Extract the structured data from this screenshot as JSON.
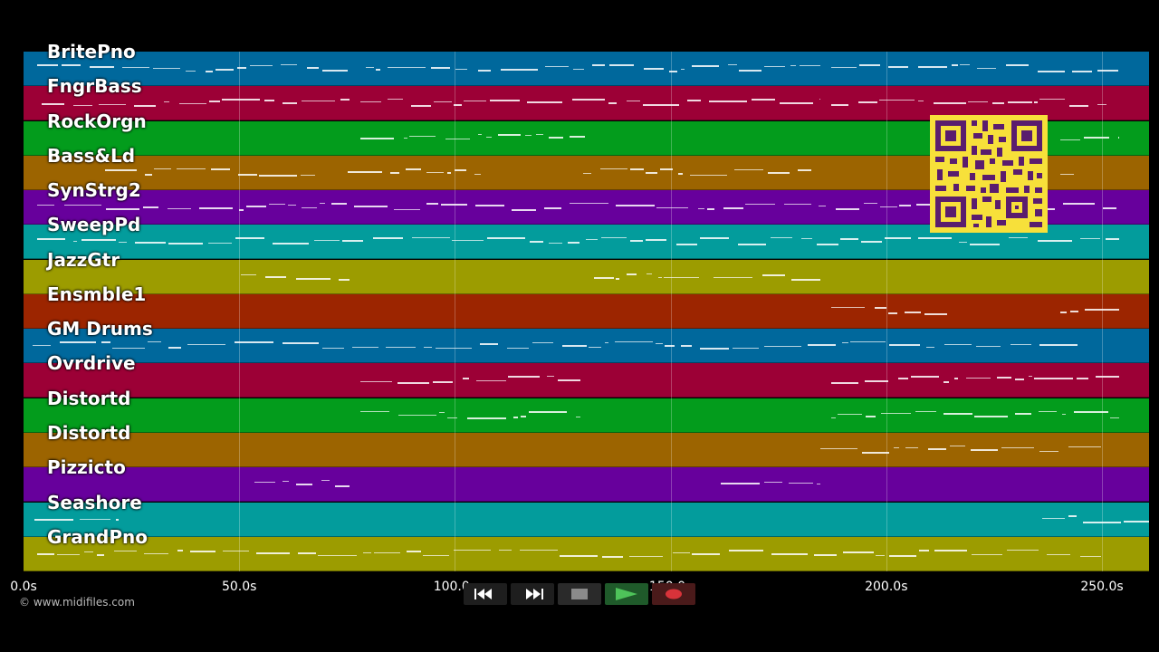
{
  "tracks": [
    {
      "name": "BritePno",
      "color": "#00689c"
    },
    {
      "name": "FngrBass",
      "color": "#9c0036"
    },
    {
      "name": "RockOrgn",
      "color": "#039c1c"
    },
    {
      "name": "Bass&Ld",
      "color": "#9c6400"
    },
    {
      "name": "SynStrg2",
      "color": "#67009c"
    },
    {
      "name": "SweepPd",
      "color": "#039c9c"
    },
    {
      "name": "JazzGtr",
      "color": "#9c9c00"
    },
    {
      "name": "Ensmble1",
      "color": "#9c2500"
    },
    {
      "name": "GM Drums",
      "color": "#00689c"
    },
    {
      "name": "Ovrdrive",
      "color": "#9c0036"
    },
    {
      "name": "Distortd",
      "color": "#039c1c"
    },
    {
      "name": "Distortd",
      "color": "#9c6400"
    },
    {
      "name": "Pizzicto",
      "color": "#67009c"
    },
    {
      "name": "Seashore",
      "color": "#039c9c"
    },
    {
      "name": "GrandPno",
      "color": "#9c9c00"
    }
  ],
  "timeline": {
    "ticks": [
      {
        "seconds": 0,
        "label": "0.0s"
      },
      {
        "seconds": 50,
        "label": "50.0s"
      },
      {
        "seconds": 100,
        "label": "100.0s"
      },
      {
        "seconds": 150,
        "label": "150.0s"
      },
      {
        "seconds": 200,
        "label": "200.0s"
      },
      {
        "seconds": 250,
        "label": "250.0s"
      }
    ],
    "range_seconds": [
      0,
      261
    ]
  },
  "copyright": "© www.midifiles.com",
  "transport": {
    "buttons": [
      {
        "name": "rewind",
        "icon": "rewind-icon"
      },
      {
        "name": "fast-forward",
        "icon": "fast-forward-icon"
      },
      {
        "name": "stop",
        "icon": "stop-icon"
      },
      {
        "name": "play",
        "icon": "play-icon"
      },
      {
        "name": "record",
        "icon": "record-icon"
      }
    ]
  },
  "qr_code": {
    "icon": "qr-code-icon",
    "color": "#f7e03a"
  }
}
